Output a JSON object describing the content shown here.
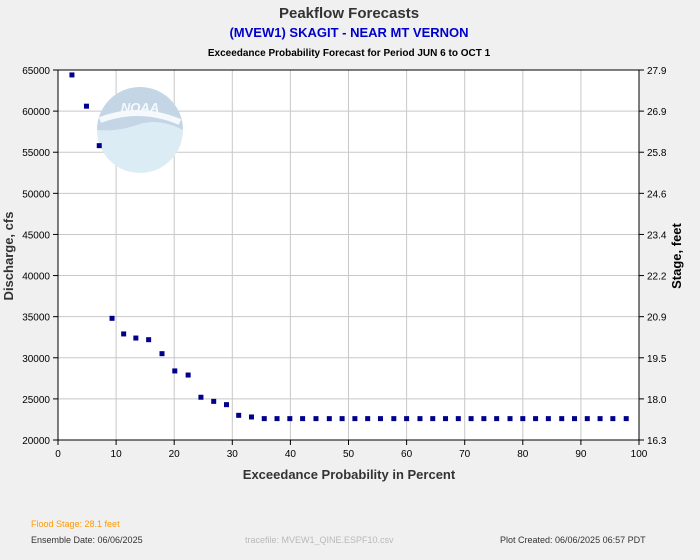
{
  "chart_data": {
    "type": "scatter",
    "title": "Peakflow Forecasts",
    "subtitle": "(MVEW1) SKAGIT - NEAR MT VERNON",
    "subtitle2": "Exceedance Probability Forecast for Period JUN 6 to OCT 1",
    "xlabel": "Exceedance Probability in Percent",
    "ylabel": "Discharge, cfs",
    "ylabel_right": "Stage, feet",
    "xlim": [
      0,
      100
    ],
    "ylim": [
      20000,
      65000
    ],
    "x_ticks": [
      "0",
      "10",
      "20",
      "30",
      "40",
      "50",
      "60",
      "70",
      "80",
      "90",
      "100"
    ],
    "y_ticks": [
      "20000",
      "25000",
      "30000",
      "35000",
      "40000",
      "45000",
      "50000",
      "55000",
      "60000",
      "65000"
    ],
    "y_right_ticks": [
      "16.3",
      "18.0",
      "19.5",
      "20.9",
      "22.2",
      "23.4",
      "24.6",
      "25.8",
      "26.9",
      "27.9"
    ],
    "grid": true,
    "marker_color": "#00008b",
    "x": [
      2.4,
      4.9,
      7.1,
      9.3,
      11.3,
      13.4,
      15.6,
      17.9,
      20.1,
      22.4,
      24.6,
      26.8,
      29.0,
      31.1,
      33.3,
      35.5,
      37.7,
      39.9,
      42.1,
      44.4,
      46.7,
      48.9,
      51.1,
      53.3,
      55.5,
      57.8,
      60.0,
      62.3,
      64.5,
      66.7,
      68.9,
      71.1,
      73.3,
      75.5,
      77.8,
      80.0,
      82.2,
      84.4,
      86.7,
      88.9,
      91.1,
      93.3,
      95.5,
      97.8
    ],
    "y": [
      64400,
      60600,
      55800,
      34800,
      32900,
      32400,
      32200,
      30500,
      28400,
      27900,
      25200,
      24700,
      24300,
      23000,
      22800,
      22600,
      22600,
      22600,
      22600,
      22600,
      22600,
      22600,
      22600,
      22600,
      22600,
      22600,
      22600,
      22600,
      22600,
      22600,
      22600,
      22600,
      22600,
      22600,
      22600,
      22600,
      22600,
      22600,
      22600,
      22600,
      22600,
      22600,
      22600,
      22600
    ]
  },
  "logo": {
    "text": "NOAA"
  },
  "footer": {
    "flood_stage": "Flood Stage: 28.1 feet",
    "ensemble_date": "Ensemble Date: 06/06/2025",
    "tracefile": "tracefile: MVEW1_QINE.ESPF10.csv",
    "plot_created": "Plot Created: 06/06/2025 06:57 PDT"
  },
  "colors": {
    "title": "#333333",
    "subtitle": "#0000cc",
    "flood": "#ff9900",
    "plot_bg": "#ffffff",
    "page_bg": "#f0f0f0",
    "grid": "#c8c8c8"
  }
}
